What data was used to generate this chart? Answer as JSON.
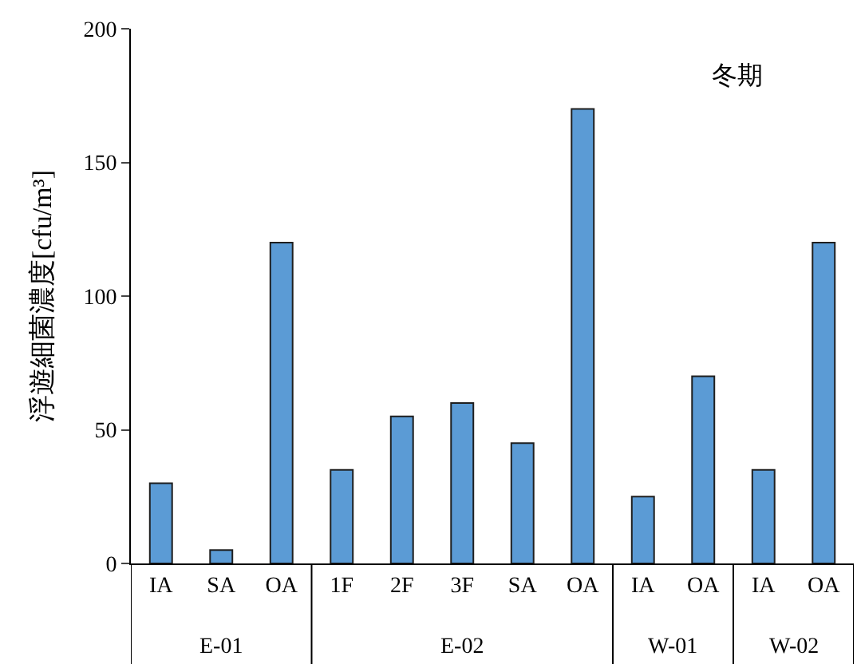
{
  "chart_data": {
    "type": "bar",
    "title": "冬期",
    "ylabel": "浮遊細菌濃度[cfu/m³]",
    "categories": [
      "IA",
      "SA",
      "OA",
      "1F",
      "2F",
      "3F",
      "SA",
      "OA",
      "IA",
      "OA",
      "IA",
      "OA"
    ],
    "series": [
      {
        "color": "#5b9bd5",
        "values": [
          30,
          5,
          120,
          35,
          55,
          60,
          45,
          170,
          25,
          70,
          35,
          120
        ]
      }
    ],
    "annotations": [
      "E-01",
      "E-02",
      "W-01",
      "W-02"
    ],
    "ylim": [
      0,
      200
    ],
    "yticks": [
      0,
      50,
      100,
      150,
      200
    ]
  }
}
